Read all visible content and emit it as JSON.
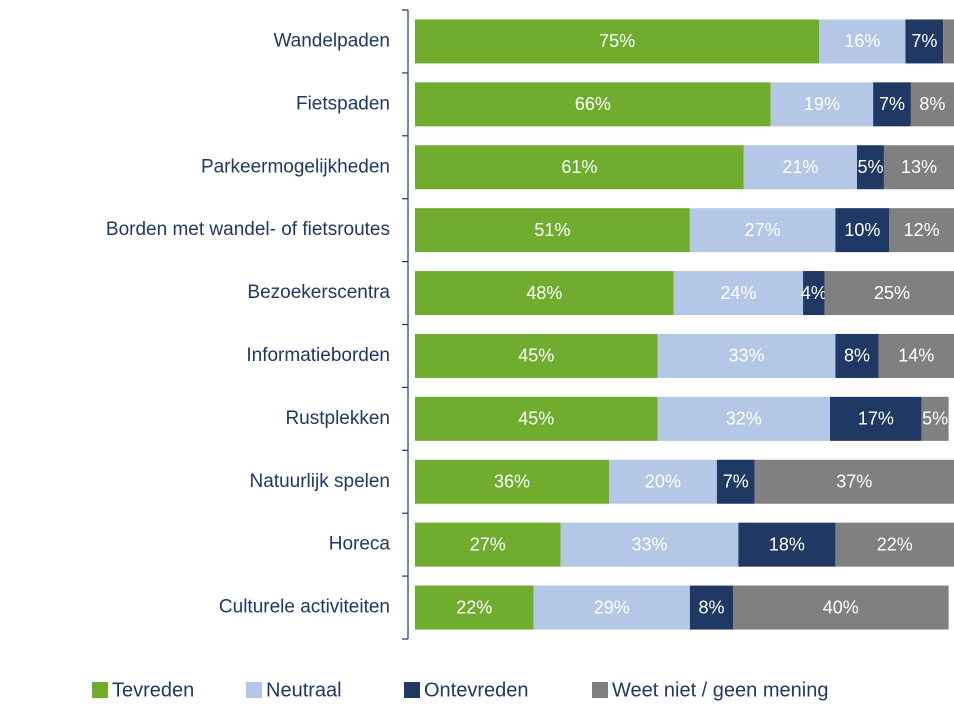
{
  "chart_data": {
    "type": "stacked-bar",
    "orientation": "horizontal",
    "categories": [
      "Wandelpaden",
      "Fietspaden",
      "Parkeermogelijkheden",
      "Borden met wandel- of fietsroutes",
      "Bezoekerscentra",
      "Informatieborden",
      "Rustplekken",
      "Natuurlijk spelen",
      "Horeca",
      "Culturele activiteiten"
    ],
    "xlim": [
      0,
      100
    ],
    "series": [
      {
        "name": "Tevreden",
        "color": "#70ad2f",
        "values": [
          75,
          66,
          61,
          51,
          48,
          45,
          45,
          36,
          27,
          22
        ],
        "value_labels": [
          "75%",
          "66%",
          "61%",
          "51%",
          "48%",
          "45%",
          "45%",
          "36%",
          "27%",
          "22%"
        ]
      },
      {
        "name": "Neutraal",
        "color": "#b4c7e7",
        "values": [
          16,
          19,
          21,
          27,
          24,
          33,
          32,
          20,
          33,
          29
        ],
        "value_labels": [
          "16%",
          "19%",
          "21%",
          "27%",
          "24%",
          "33%",
          "32%",
          "20%",
          "33%",
          "29%"
        ]
      },
      {
        "name": "Ontevreden",
        "color": "#1f3864",
        "values": [
          7,
          7,
          5,
          10,
          4,
          8,
          17,
          7,
          18,
          8
        ],
        "value_labels": [
          "7%",
          "7%",
          "5%",
          "10%",
          "4%",
          "8%",
          "17%",
          "7%",
          "18%",
          "8%"
        ]
      },
      {
        "name": "Weet niet / geen mening",
        "color": "#808080",
        "values": [
          2,
          8,
          13,
          12,
          25,
          14,
          5,
          37,
          22,
          40
        ],
        "value_labels": [
          null,
          "8%",
          "13%",
          "12%",
          "25%",
          "14%",
          "5%",
          "37%",
          "22%",
          "40%"
        ]
      }
    ],
    "legend": "bottom"
  }
}
